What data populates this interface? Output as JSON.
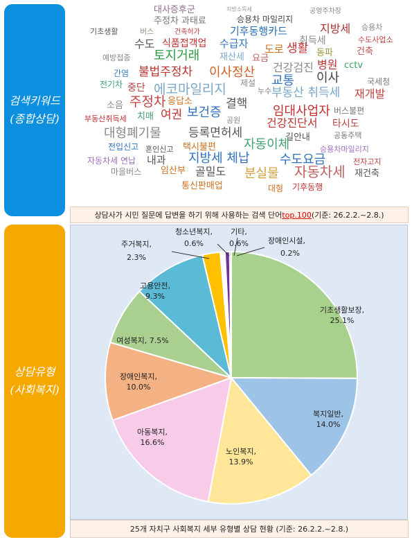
{
  "side_labels": {
    "top": "검색키워드\n(종합상담)",
    "bottom": "상담유형\n(사회복지)"
  },
  "word_cloud": [
    {
      "t": "대사증후군",
      "c": "#8c6d8c"
    },
    {
      "t": "지방소득세",
      "c": "#999999"
    },
    {
      "t": "공영주차장",
      "c": "#888888"
    },
    {
      "t": "주정차 과태료",
      "c": "#777777"
    },
    {
      "t": "승용차 마일리지",
      "c": "#444444"
    },
    {
      "t": "기초생활",
      "c": "#555555"
    },
    {
      "t": "버스",
      "c": "#9a8f80"
    },
    {
      "t": "건축허가",
      "c": "#c04040"
    },
    {
      "t": "기후동행카드",
      "c": "#2a6fb5"
    },
    {
      "t": "지방세",
      "c": "#b03030"
    },
    {
      "t": "승용차",
      "c": "#888888"
    },
    {
      "t": "수도",
      "c": "#555555"
    },
    {
      "t": "식품접객업",
      "c": "#c03030"
    },
    {
      "t": "수급자",
      "c": "#3070c0"
    },
    {
      "t": "취득세",
      "c": "#888888"
    },
    {
      "t": "수도사업소",
      "c": "#c04040"
    },
    {
      "t": "토지거래",
      "c": "#2a9a40"
    },
    {
      "t": "재산세",
      "c": "#7aa6c8"
    },
    {
      "t": "요금",
      "c": "#c06060"
    },
    {
      "t": "도로",
      "c": "#d07020"
    },
    {
      "t": "생활",
      "c": "#c03030"
    },
    {
      "t": "동파",
      "c": "#9a9a40"
    },
    {
      "t": "건축",
      "c": "#c05050"
    },
    {
      "t": "예방접종",
      "c": "#888888"
    },
    {
      "t": "cctv",
      "c": "#40a060"
    },
    {
      "t": "간염",
      "c": "#3a80c0"
    },
    {
      "t": "불법주정차",
      "c": "#c03030"
    },
    {
      "t": "이사정산",
      "c": "#d06020"
    },
    {
      "t": "건강검진",
      "c": "#888888"
    },
    {
      "t": "병원",
      "c": "#c03030"
    },
    {
      "t": "전기차",
      "c": "#40a080"
    },
    {
      "t": "제설",
      "c": "#888888"
    },
    {
      "t": "교통",
      "c": "#3070c0"
    },
    {
      "t": "이사",
      "c": "#444444"
    },
    {
      "t": "국세청",
      "c": "#777777"
    },
    {
      "t": "중단",
      "c": "#c04040"
    },
    {
      "t": "에코마일리지",
      "c": "#7aa6c8"
    },
    {
      "t": "누수",
      "c": "#777777"
    },
    {
      "t": "부동산 취득세",
      "c": "#7aa6c8"
    },
    {
      "t": "재개발",
      "c": "#c04040"
    },
    {
      "t": "소음",
      "c": "#888888"
    },
    {
      "t": "주정차",
      "c": "#c04040"
    },
    {
      "t": "응답소",
      "c": "#d07020"
    },
    {
      "t": "결핵",
      "c": "#555555"
    },
    {
      "t": "임대사업자",
      "c": "#c03030"
    },
    {
      "t": "버스불편",
      "c": "#777777"
    },
    {
      "t": "부동산취득세",
      "c": "#c03030"
    },
    {
      "t": "치매",
      "c": "#40a070"
    },
    {
      "t": "여권",
      "c": "#c03030"
    },
    {
      "t": "보건증",
      "c": "#3070c0"
    },
    {
      "t": "공원",
      "c": "#888888"
    },
    {
      "t": "건강진단서",
      "c": "#c03030"
    },
    {
      "t": "타시도",
      "c": "#c04040"
    },
    {
      "t": "대형폐기물",
      "c": "#888888"
    },
    {
      "t": "등록면허세",
      "c": "#555555"
    },
    {
      "t": "길안내",
      "c": "#555555"
    },
    {
      "t": "공동주택",
      "c": "#777777"
    },
    {
      "t": "전입신고",
      "c": "#3070c0"
    },
    {
      "t": "혼인신고",
      "c": "#555555"
    },
    {
      "t": "택시불편",
      "c": "#d07020"
    },
    {
      "t": "자동이체",
      "c": "#40a070"
    },
    {
      "t": "승용차마일리지",
      "c": "#a070c0"
    },
    {
      "t": "자동차세 연납",
      "c": "#a070c0"
    },
    {
      "t": "내과",
      "c": "#555555"
    },
    {
      "t": "지방세 체납",
      "c": "#3070c0"
    },
    {
      "t": "수도요금",
      "c": "#3070c0"
    },
    {
      "t": "전자고지",
      "c": "#c04040"
    },
    {
      "t": "마을버스",
      "c": "#888888"
    },
    {
      "t": "임산부",
      "c": "#d07020"
    },
    {
      "t": "골밀도",
      "c": "#555555"
    },
    {
      "t": "분실물",
      "c": "#d0a040"
    },
    {
      "t": "자동차세",
      "c": "#c06060"
    },
    {
      "t": "재건축",
      "c": "#555555"
    },
    {
      "t": "통신판매업",
      "c": "#d07020"
    },
    {
      "t": "대형",
      "c": "#d07020"
    },
    {
      "t": "기후동행",
      "c": "#c03030"
    }
  ],
  "captions": {
    "top_pre": "상담사가 시민 질문에 답변을 하기 위해 사용하는 검색 단어 ",
    "top_hl": "top.100",
    "top_post": " (기준: 26.2.2.~2.8.)",
    "bottom": "25개 자치구 사회복지 세부 유형별 상담 현황 (기준: 26.2.2.~2.8.)"
  },
  "chart_data": {
    "type": "pie",
    "title": "",
    "slices": [
      {
        "name": "기초생활보장",
        "value": 25.1,
        "label": "25.1%",
        "color": "#a9d18e"
      },
      {
        "name": "복지일반",
        "value": 14.0,
        "label": "14.0%",
        "color": "#9dc3e6"
      },
      {
        "name": "노인복지",
        "value": 13.9,
        "label": "13.9%",
        "color": "#ffe699"
      },
      {
        "name": "아동복지",
        "value": 16.6,
        "label": "16.6%",
        "color": "#f8cbe8"
      },
      {
        "name": "장애인복지",
        "value": 10.0,
        "label": "10.0%",
        "color": "#f4b183"
      },
      {
        "name": "여성복지",
        "value": 7.5,
        "label": "7.5%",
        "color": "#a9d08e"
      },
      {
        "name": "고용안전",
        "value": 9.3,
        "label": "9.3%",
        "color": "#5bbad5"
      },
      {
        "name": "주거복지",
        "value": 2.3,
        "label": "2.3%",
        "color": "#ffc000"
      },
      {
        "name": "청소년복지",
        "value": 0.6,
        "label": "0.6%",
        "color": "#ffffff"
      },
      {
        "name": "기타",
        "value": 0.6,
        "label": "0.6%",
        "color": "#7030a0"
      },
      {
        "name": "장애인시설",
        "value": 0.2,
        "label": "0.2%",
        "color": "#2f5597"
      }
    ]
  }
}
